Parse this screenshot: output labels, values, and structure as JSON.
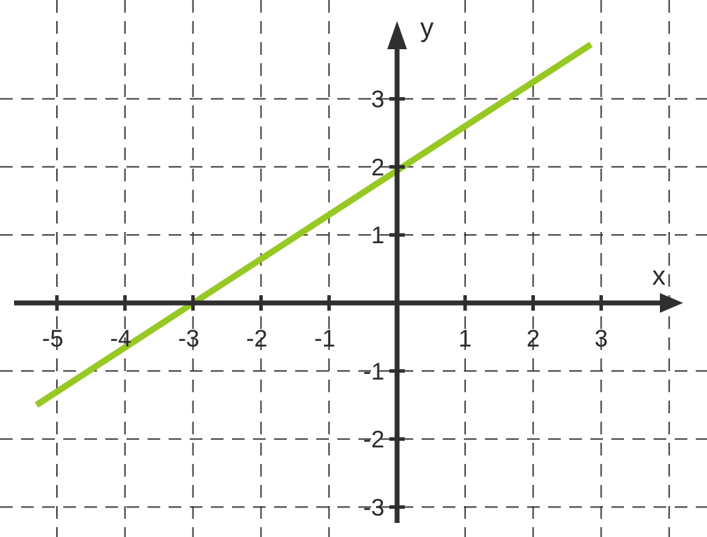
{
  "chart_data": {
    "type": "line",
    "xlabel": "x",
    "ylabel": "y",
    "xlim": [
      -5.6,
      4.2
    ],
    "ylim": [
      -3.2,
      4.1
    ],
    "x_ticks": [
      -5,
      -4,
      -3,
      -2,
      -1,
      1,
      2,
      3
    ],
    "y_ticks": [
      -3,
      -2,
      -1,
      1,
      2,
      3
    ],
    "grid": true,
    "series": [
      {
        "color": "#97c824",
        "x": [
          -5.3,
          2.85
        ],
        "y": [
          -1.5,
          3.8
        ]
      }
    ],
    "colors": {
      "axis": "#2f2f2f",
      "grid": "#3a3a3a",
      "line": "#97c824"
    }
  }
}
